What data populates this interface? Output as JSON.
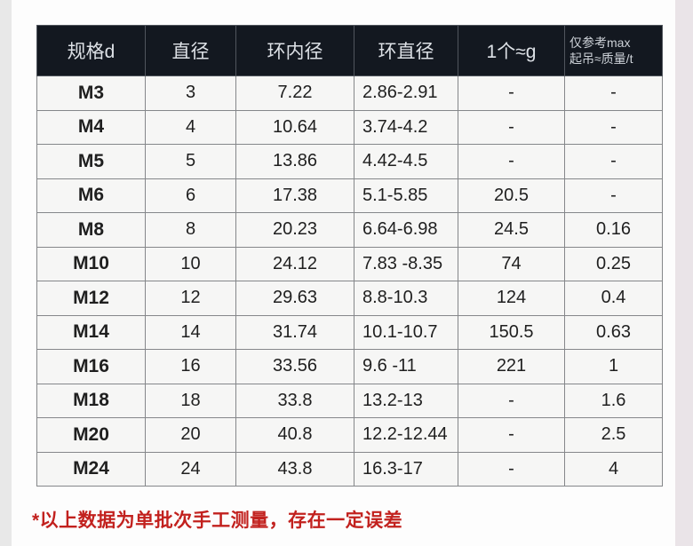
{
  "table": {
    "headers": [
      "规格d",
      "直径",
      "环内径",
      "环直径",
      "1个≈g"
    ],
    "last_header": {
      "line1": "仅参考max",
      "line2": "起吊≈质量/t"
    },
    "col_keys": [
      "spec",
      "diameter",
      "ring_inner_diameter",
      "ring_diameter",
      "weight_g",
      "max_lift_t"
    ],
    "rows": [
      [
        "M3",
        "3",
        "7.22",
        "2.86-2.91",
        "-",
        "-"
      ],
      [
        "M4",
        "4",
        "10.64",
        "3.74-4.2",
        "-",
        "-"
      ],
      [
        "M5",
        "5",
        "13.86",
        "4.42-4.5",
        "-",
        "-"
      ],
      [
        "M6",
        "6",
        "17.38",
        "5.1-5.85",
        "20.5",
        "-"
      ],
      [
        "M8",
        "8",
        "20.23",
        "6.64-6.98",
        "24.5",
        "0.16"
      ],
      [
        "M10",
        "10",
        "24.12",
        "7.83 -8.35",
        "74",
        "0.25"
      ],
      [
        "M12",
        "12",
        "29.63",
        "8.8-10.3",
        "124",
        "0.4"
      ],
      [
        "M14",
        "14",
        "31.74",
        "10.1-10.7",
        "150.5",
        "0.63"
      ],
      [
        "M16",
        "16",
        "33.56",
        "9.6 -11",
        "221",
        "1"
      ],
      [
        "M18",
        "18",
        "33.8",
        "13.2-13",
        "-",
        "1.6"
      ],
      [
        "M20",
        "20",
        "40.8",
        "12.2-12.44",
        "-",
        "2.5"
      ],
      [
        "M24",
        "24",
        "43.8",
        "16.3-17",
        "-",
        "4"
      ]
    ]
  },
  "footnote": {
    "text": "*以上数据为单批次手工测量，存在一定误差"
  },
  "colors": {
    "header_bg": "#131820",
    "header_text": "#dde1e6",
    "grid_border": "#85878a",
    "body_bg": "#f6f6f5",
    "body_text": "#1f1f1f",
    "footnote_red": "#c2211e",
    "left_strip": "#e8e8e8",
    "right_strip": "#eae4e8"
  }
}
